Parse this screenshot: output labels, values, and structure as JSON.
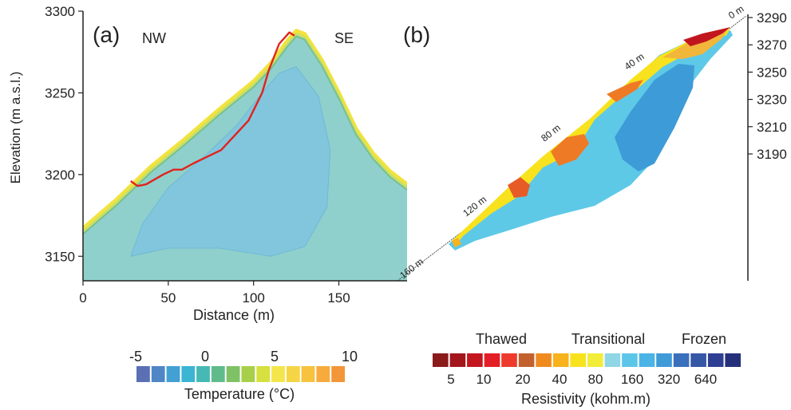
{
  "chart_data": [
    {
      "type": "heatmap",
      "panel_label": "(a)",
      "direction_labels": [
        "NW",
        "SE"
      ],
      "xlabel": "Distance (m)",
      "ylabel": "Elevation (m a.s.l.)",
      "xlim": [
        0,
        190
      ],
      "ylim": [
        3135,
        3300
      ],
      "x_ticks": [
        0,
        50,
        100,
        150
      ],
      "y_ticks": [
        3150,
        3200,
        3250,
        3300
      ],
      "ground_profile": [
        [
          0,
          3167
        ],
        [
          20,
          3185
        ],
        [
          40,
          3205
        ],
        [
          60,
          3222
        ],
        [
          80,
          3240
        ],
        [
          100,
          3257
        ],
        [
          110,
          3268
        ],
        [
          120,
          3282
        ],
        [
          125,
          3288
        ],
        [
          130,
          3286
        ],
        [
          140,
          3270
        ],
        [
          150,
          3250
        ],
        [
          160,
          3228
        ],
        [
          170,
          3213
        ],
        [
          180,
          3202
        ],
        [
          190,
          3194
        ]
      ],
      "cold_core": [
        [
          28,
          3150
        ],
        [
          35,
          3170
        ],
        [
          50,
          3192
        ],
        [
          70,
          3210
        ],
        [
          90,
          3230
        ],
        [
          105,
          3250
        ],
        [
          115,
          3262
        ],
        [
          125,
          3266
        ],
        [
          138,
          3248
        ],
        [
          145,
          3215
        ],
        [
          143,
          3180
        ],
        [
          130,
          3156
        ],
        [
          110,
          3150
        ],
        [
          80,
          3155
        ],
        [
          50,
          3155
        ]
      ],
      "boundary_line": [
        [
          28,
          3196
        ],
        [
          32,
          3193
        ],
        [
          37,
          3194
        ],
        [
          47,
          3200
        ],
        [
          53,
          3203
        ],
        [
          58,
          3203
        ],
        [
          65,
          3207
        ],
        [
          81,
          3215
        ],
        [
          97,
          3233
        ],
        [
          105,
          3250
        ],
        [
          109,
          3264
        ],
        [
          115,
          3280
        ],
        [
          121,
          3287
        ],
        [
          124,
          3285
        ]
      ],
      "colorbar": {
        "label": "Temperature (°C)",
        "tick_labels": [
          "-5",
          "0",
          "5",
          "10"
        ],
        "colors": [
          "#5b6fb5",
          "#4f86c6",
          "#43a0d3",
          "#3cb4d4",
          "#47b9b4",
          "#5fbb8c",
          "#7fc266",
          "#a8cf4a",
          "#d6e03e",
          "#f4e64a",
          "#f6d545",
          "#f7c23e",
          "#f6ab3c",
          "#f39539"
        ]
      }
    },
    {
      "type": "heatmap",
      "panel_label": "(b)",
      "right_axis_ticks": [
        "3290",
        "3270",
        "3250",
        "3230",
        "3210",
        "3190"
      ],
      "profile_labels": [
        "0 m",
        "40 m",
        "80 m",
        "120 m",
        "160 m"
      ],
      "colorbar": {
        "label": "Resistivity (kohm.m)",
        "category_labels": [
          "Thawed",
          "Transitional",
          "Frozen"
        ],
        "tick_labels": [
          "5",
          "10",
          "20",
          "40",
          "80",
          "160",
          "320",
          "640"
        ],
        "colors": [
          "#8b1a1a",
          "#a3161b",
          "#c3161e",
          "#e41e26",
          "#ee3a2d",
          "#c2612d",
          "#f08a1e",
          "#f7b21c",
          "#f8e21d",
          "#f2ec3a",
          "#8fd6e6",
          "#5cc6e8",
          "#4ab4e6",
          "#3f9ad8",
          "#3a6fbc",
          "#3656a6",
          "#2e3f93",
          "#26307a"
        ]
      }
    }
  ]
}
